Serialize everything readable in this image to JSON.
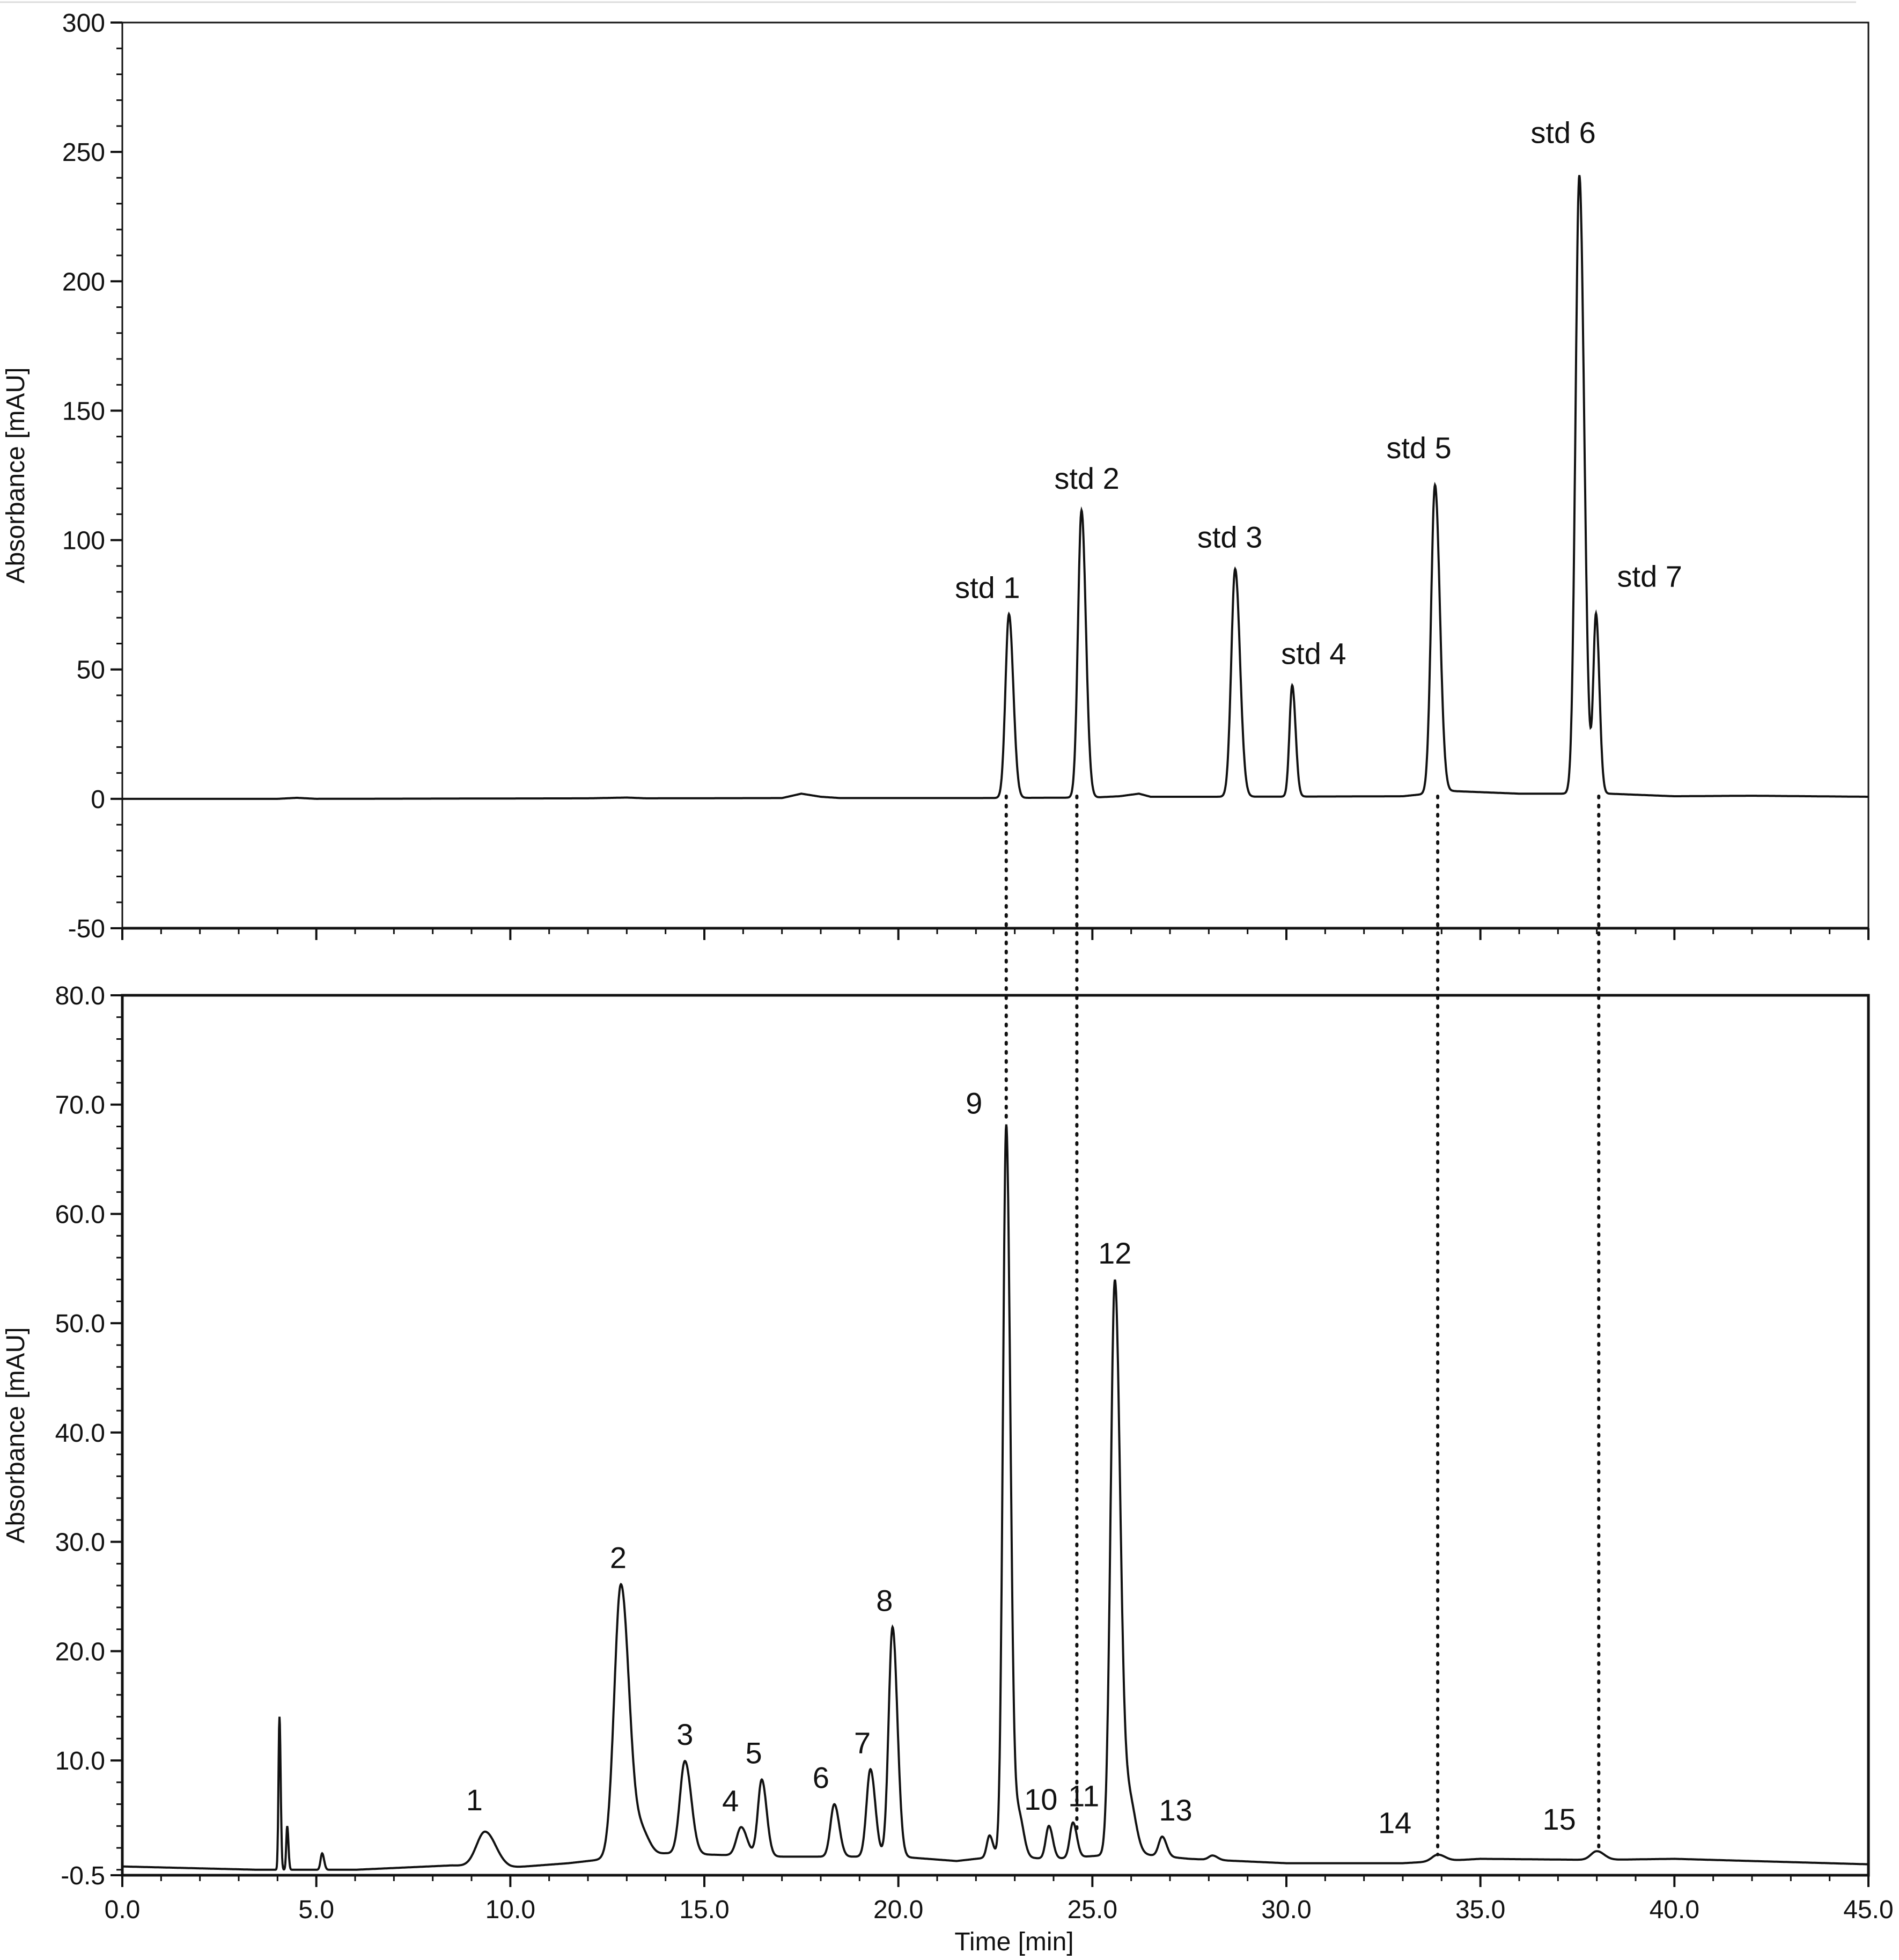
{
  "chart_data": [
    {
      "type": "line",
      "id": "top",
      "title": "",
      "xlabel": "",
      "ylabel": "Absorbance [mAU]",
      "xlim": [
        0,
        45
      ],
      "ylim": [
        -50,
        300
      ],
      "yticks": [
        -50,
        0,
        50,
        100,
        150,
        200,
        250,
        300
      ],
      "ytick_labels": [
        "-50",
        "0",
        "50",
        "100",
        "150",
        "200",
        "250",
        "300"
      ],
      "grid": false,
      "baseline": [
        [
          0,
          0
        ],
        [
          4,
          0
        ],
        [
          4.5,
          0.4
        ],
        [
          5,
          0
        ],
        [
          12,
          0.2
        ],
        [
          13,
          0.5
        ],
        [
          13.5,
          0.2
        ],
        [
          17,
          0.3
        ],
        [
          17.5,
          2
        ],
        [
          18,
          0.8
        ],
        [
          18.5,
          0.3
        ],
        [
          22,
          0.3
        ],
        [
          25,
          0.5
        ],
        [
          25.7,
          1
        ],
        [
          26.2,
          2
        ],
        [
          26.5,
          0.8
        ],
        [
          28,
          0.8
        ],
        [
          31,
          0.9
        ],
        [
          33,
          1
        ],
        [
          34.3,
          3
        ],
        [
          36,
          2
        ],
        [
          37,
          2
        ],
        [
          38.3,
          2
        ],
        [
          40,
          1
        ],
        [
          42,
          1.2
        ],
        [
          45,
          0.8
        ]
      ],
      "peaks": [
        {
          "label": "std 1",
          "x": 22.85,
          "y": 71,
          "w": 0.09
        },
        {
          "label": "std 2",
          "x": 24.72,
          "y": 111,
          "w": 0.09
        },
        {
          "label": "std 3",
          "x": 28.68,
          "y": 88,
          "w": 0.1
        },
        {
          "label": "std 4",
          "x": 30.15,
          "y": 43,
          "w": 0.07
        },
        {
          "label": "std 5",
          "x": 33.83,
          "y": 119,
          "w": 0.1
        },
        {
          "label": "std 6",
          "x": 37.55,
          "y": 239,
          "w": 0.1
        },
        {
          "label": "std 7",
          "x": 37.98,
          "y": 69,
          "w": 0.07
        }
      ]
    },
    {
      "type": "line",
      "id": "bottom",
      "title": "",
      "xlabel": "Time [min]",
      "ylabel": "Absorbance [mAU]",
      "xlim": [
        0,
        45
      ],
      "ylim": [
        -0.5,
        80
      ],
      "xticks": [
        0,
        5,
        10,
        15,
        20,
        25,
        30,
        35,
        40,
        45
      ],
      "xtick_labels": [
        "0.0",
        "5.0",
        "10.0",
        "15.0",
        "20.0",
        "25.0",
        "30.0",
        "35.0",
        "40.0",
        "45.0"
      ],
      "yticks": [
        -0.5,
        10,
        20,
        30,
        40,
        50,
        60,
        70,
        80
      ],
      "ytick_labels": [
        "-0.5",
        "10.0",
        "20.0",
        "30.0",
        "40.0",
        "50.0",
        "60.0",
        "70.0",
        "80.0"
      ],
      "grid": false,
      "baseline": [
        [
          0,
          0.3
        ],
        [
          3.5,
          0
        ],
        [
          4,
          0
        ],
        [
          6,
          0
        ],
        [
          8.5,
          0.4
        ],
        [
          10,
          0.2
        ],
        [
          11.5,
          0.6
        ],
        [
          12.5,
          1
        ],
        [
          14,
          1.5
        ],
        [
          17,
          1.2
        ],
        [
          20,
          1.2
        ],
        [
          21.5,
          0.8
        ],
        [
          22.5,
          1.2
        ],
        [
          24,
          1
        ],
        [
          26,
          1.5
        ],
        [
          27.5,
          1
        ],
        [
          30,
          0.6
        ],
        [
          33,
          0.6
        ],
        [
          35,
          1
        ],
        [
          38,
          0.9
        ],
        [
          40,
          1
        ],
        [
          42,
          0.8
        ],
        [
          45,
          0.5
        ]
      ],
      "peaks": [
        {
          "label": "",
          "x": 4.05,
          "y": 14,
          "w": 0.025
        },
        {
          "label": "",
          "x": 4.25,
          "y": 4,
          "w": 0.025
        },
        {
          "label": "",
          "x": 5.15,
          "y": 1.5,
          "w": 0.04
        },
        {
          "label": "1",
          "x": 9.35,
          "y": 3.2,
          "w": 0.22
        },
        {
          "label": "2",
          "x": 12.85,
          "y": 25,
          "w": 0.17
        },
        {
          "label": "",
          "x": 13.4,
          "y": 2,
          "w": 0.15
        },
        {
          "label": "3",
          "x": 14.5,
          "y": 8.5,
          "w": 0.13
        },
        {
          "label": "4",
          "x": 15.95,
          "y": 2.6,
          "w": 0.12
        },
        {
          "label": "5",
          "x": 16.48,
          "y": 7,
          "w": 0.1
        },
        {
          "label": "6",
          "x": 18.35,
          "y": 4.8,
          "w": 0.1
        },
        {
          "label": "7",
          "x": 19.28,
          "y": 8,
          "w": 0.1
        },
        {
          "label": "8",
          "x": 19.85,
          "y": 21,
          "w": 0.1
        },
        {
          "label": "",
          "x": 22.35,
          "y": 2,
          "w": 0.07
        },
        {
          "label": "9",
          "x": 22.78,
          "y": 67,
          "w": 0.085
        },
        {
          "label": "",
          "x": 23.1,
          "y": 4,
          "w": 0.1
        },
        {
          "label": "10",
          "x": 23.88,
          "y": 3,
          "w": 0.08
        },
        {
          "label": "11",
          "x": 24.5,
          "y": 3.2,
          "w": 0.08
        },
        {
          "label": "12",
          "x": 25.58,
          "y": 52.5,
          "w": 0.11
        },
        {
          "label": "",
          "x": 25.95,
          "y": 5,
          "w": 0.13
        },
        {
          "label": "13",
          "x": 26.8,
          "y": 1.8,
          "w": 0.09
        },
        {
          "label": "",
          "x": 28.1,
          "y": 0.4,
          "w": 0.1
        },
        {
          "label": "14",
          "x": 33.9,
          "y": 0.6,
          "w": 0.15
        },
        {
          "label": "15",
          "x": 38.0,
          "y": 0.8,
          "w": 0.15
        }
      ]
    }
  ],
  "connectors": [
    22.78,
    24.6,
    33.9,
    38.05
  ]
}
